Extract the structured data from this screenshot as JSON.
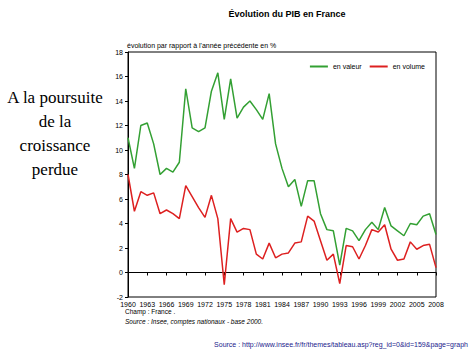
{
  "chart_data": {
    "type": "line",
    "title": "Évolution du PIB en France",
    "subtitle": "évolution par rapport à l'année précédente en %",
    "x": [
      1960,
      1961,
      1962,
      1963,
      1964,
      1965,
      1966,
      1967,
      1968,
      1969,
      1970,
      1971,
      1972,
      1973,
      1974,
      1975,
      1976,
      1977,
      1978,
      1979,
      1980,
      1981,
      1982,
      1983,
      1984,
      1985,
      1986,
      1987,
      1988,
      1989,
      1990,
      1991,
      1992,
      1993,
      1994,
      1995,
      1996,
      1997,
      1998,
      1999,
      2000,
      2001,
      2002,
      2003,
      2004,
      2005,
      2006,
      2007,
      2008
    ],
    "series": [
      {
        "name": "en valeur",
        "color": "#33a033",
        "values": [
          11,
          8.5,
          12,
          12.2,
          10.5,
          8,
          8.5,
          8.2,
          9,
          15,
          11.8,
          11.5,
          11.8,
          14.8,
          16.3,
          12.5,
          15.8,
          12.6,
          13.5,
          14,
          13.3,
          12.5,
          14.6,
          10.5,
          8.5,
          7,
          7.6,
          5.4,
          7.5,
          7.5,
          4.8,
          3.5,
          3.4,
          0.6,
          3.6,
          3.4,
          2.6,
          3.5,
          4.1,
          3.5,
          5.3,
          3.8,
          3.4,
          3,
          4,
          3.9,
          4.6,
          4.8,
          3.1
        ]
      },
      {
        "name": "en volume",
        "color": "#dd2020",
        "values": [
          8,
          5,
          6.6,
          6.3,
          6.5,
          4.8,
          5.1,
          4.8,
          4.4,
          7.1,
          6.2,
          5.3,
          4.5,
          6.3,
          4.4,
          -1,
          4.4,
          3.3,
          3.6,
          3.5,
          1.5,
          1.1,
          2.4,
          1.2,
          1.5,
          1.6,
          2.4,
          2.5,
          4.6,
          4.2,
          2.6,
          1,
          1.5,
          -0.9,
          2.2,
          2.1,
          1.1,
          2.2,
          3.5,
          3.3,
          3.9,
          1.9,
          1,
          1.1,
          2.5,
          1.9,
          2.2,
          2.3,
          0.4
        ]
      }
    ],
    "xlim": [
      1960,
      2008
    ],
    "xticks": [
      1960,
      1963,
      1966,
      1969,
      1972,
      1975,
      1978,
      1981,
      1984,
      1987,
      1990,
      1993,
      1996,
      1999,
      2002,
      2005,
      2008
    ],
    "ylim": [
      -2,
      18
    ],
    "yticks": [
      -2,
      0,
      2,
      4,
      6,
      8,
      10,
      12,
      14,
      16,
      18
    ],
    "grid": false,
    "legend": "upper right",
    "notes": [
      "Champ : France .",
      "Source : Insee, comptes nationaux - base 2000."
    ]
  },
  "slide": {
    "heading": "A la poursuite de la croissance perdue",
    "source": "Source : http://www.insee.fr/fr/themes/tableau.asp?reg_id=0&id=159&page=graph"
  }
}
